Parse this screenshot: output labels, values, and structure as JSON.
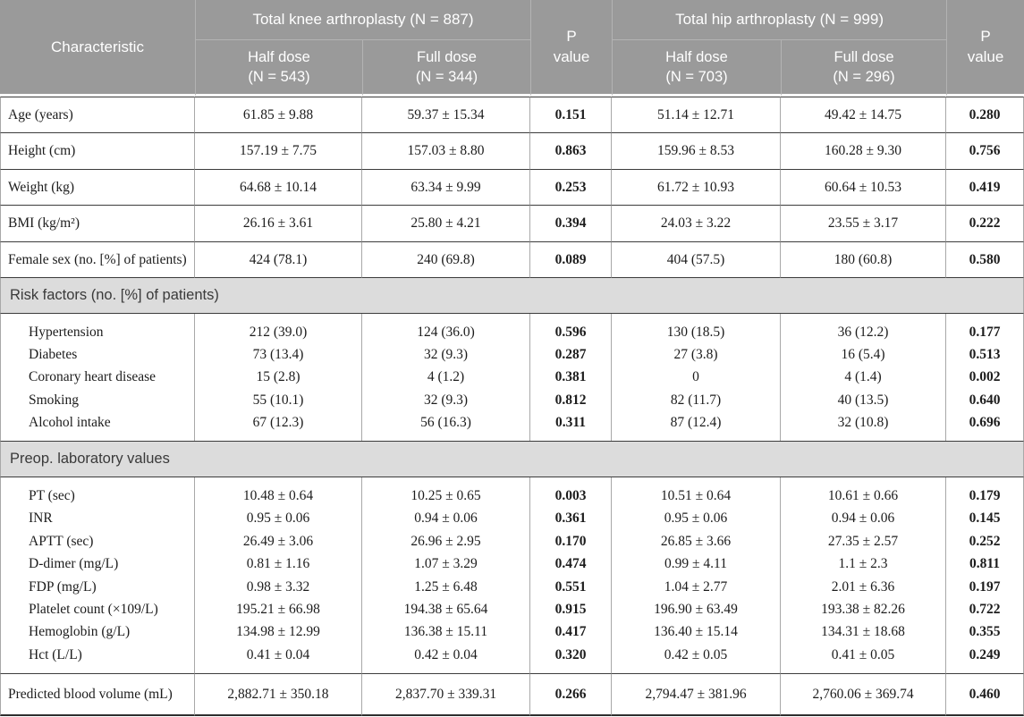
{
  "header": {
    "characteristic": "Characteristic",
    "p_value": "P\nvalue",
    "knee": {
      "title": "Total knee arthroplasty (N = 887)",
      "sub_half": "Half dose\n(N = 543)",
      "sub_full": "Full dose\n(N = 344)"
    },
    "hip": {
      "title": "Total hip arthroplasty (N = 999)",
      "sub_half": "Half dose\n(N = 703)",
      "sub_full": "Full dose\n(N = 296)"
    }
  },
  "table": {
    "rows": [
      {
        "type": "data",
        "label": "Age (years)",
        "values": [
          "61.85 ± 9.88",
          "59.37 ± 15.34",
          "0.151",
          "51.14 ± 12.71",
          "49.42 ± 14.75",
          "0.280"
        ]
      },
      {
        "type": "data",
        "label": "Height (cm)",
        "values": [
          "157.19 ± 7.75",
          "157.03 ± 8.80",
          "0.863",
          "159.96 ± 8.53",
          "160.28 ± 9.30",
          "0.756"
        ]
      },
      {
        "type": "data",
        "label": "Weight (kg)",
        "values": [
          "64.68 ± 10.14",
          "63.34 ± 9.99",
          "0.253",
          "61.72 ± 10.93",
          "60.64 ± 10.53",
          "0.419"
        ]
      },
      {
        "type": "data",
        "label": "BMI (kg/m²)",
        "values": [
          "26.16 ± 3.61",
          "25.80 ± 4.21",
          "0.394",
          "24.03 ± 3.22",
          "23.55 ± 3.17",
          "0.222"
        ]
      },
      {
        "type": "data",
        "label": "Female sex (no. [%] of patients)",
        "values": [
          "424 (78.1)",
          "240 (69.8)",
          "0.089",
          "404 (57.5)",
          "180 (60.8)",
          "0.580"
        ]
      },
      {
        "type": "section",
        "label": "Risk factors (no. [%] of patients)"
      },
      {
        "type": "group",
        "rows": [
          {
            "label": "Hypertension",
            "values": [
              "212 (39.0)",
              "124 (36.0)",
              "0.596",
              "130 (18.5)",
              "36 (12.2)",
              "0.177"
            ]
          },
          {
            "label": "Diabetes",
            "values": [
              "73 (13.4)",
              "32 (9.3)",
              "0.287",
              "27 (3.8)",
              "16 (5.4)",
              "0.513"
            ]
          },
          {
            "label": "Coronary heart disease",
            "values": [
              "15 (2.8)",
              "4 (1.2)",
              "0.381",
              "0",
              "4 (1.4)",
              "0.002"
            ]
          },
          {
            "label": "Smoking",
            "values": [
              "55 (10.1)",
              "32 (9.3)",
              "0.812",
              "82 (11.7)",
              "40 (13.5)",
              "0.640"
            ]
          },
          {
            "label": "Alcohol intake",
            "values": [
              "67 (12.3)",
              "56 (16.3)",
              "0.311",
              "87 (12.4)",
              "32 (10.8)",
              "0.696"
            ]
          }
        ]
      },
      {
        "type": "section",
        "label": "Preop. laboratory values"
      },
      {
        "type": "group",
        "rows": [
          {
            "label": "PT (sec)",
            "values": [
              "10.48 ± 0.64",
              "10.25 ± 0.65",
              "0.003",
              "10.51 ± 0.64",
              "10.61 ± 0.66",
              "0.179"
            ]
          },
          {
            "label": "INR",
            "values": [
              "0.95 ± 0.06",
              "0.94 ± 0.06",
              "0.361",
              "0.95 ± 0.06",
              "0.94 ± 0.06",
              "0.145"
            ]
          },
          {
            "label": "APTT (sec)",
            "values": [
              "26.49 ± 3.06",
              "26.96 ± 2.95",
              "0.170",
              "26.85 ± 3.66",
              "27.35 ± 2.57",
              "0.252"
            ]
          },
          {
            "label": "D-dimer (mg/L)",
            "values": [
              "0.81 ± 1.16",
              "1.07 ± 3.29",
              "0.474",
              "0.99 ± 4.11",
              "1.1 ± 2.3",
              "0.811"
            ]
          },
          {
            "label": "FDP (mg/L)",
            "values": [
              "0.98 ± 3.32",
              "1.25 ± 6.48",
              "0.551",
              "1.04 ± 2.77",
              "2.01 ± 6.36",
              "0.197"
            ]
          },
          {
            "label": "Platelet count (×109/L)",
            "values": [
              "195.21 ± 66.98",
              "194.38 ± 65.64",
              "0.915",
              "196.90 ± 63.49",
              "193.38 ± 82.26",
              "0.722"
            ]
          },
          {
            "label": "Hemoglobin (g/L)",
            "values": [
              "134.98 ± 12.99",
              "136.38 ± 15.11",
              "0.417",
              "136.40 ± 15.14",
              "134.31 ± 18.68",
              "0.355"
            ]
          },
          {
            "label": "Hct (L/L)",
            "values": [
              "0.41 ± 0.04",
              "0.42 ± 0.04",
              "0.320",
              "0.42 ± 0.05",
              "0.41 ± 0.05",
              "0.249"
            ]
          }
        ]
      },
      {
        "type": "data",
        "last": true,
        "label": "Predicted blood volume (mL)",
        "values": [
          "2,882.71 ± 350.18",
          "2,837.70 ± 339.31",
          "0.266",
          "2,794.47 ± 381.96",
          "2,760.06 ± 369.74",
          "0.460"
        ]
      }
    ]
  },
  "colors": {
    "header_bg": "#9a9a9a",
    "header_text": "#ffffff",
    "section_bg": "#dcdcdc",
    "body_text": "#1c1c1c",
    "rule_dark": "#3c3c3c",
    "rule_light": "#a8a8a8"
  }
}
